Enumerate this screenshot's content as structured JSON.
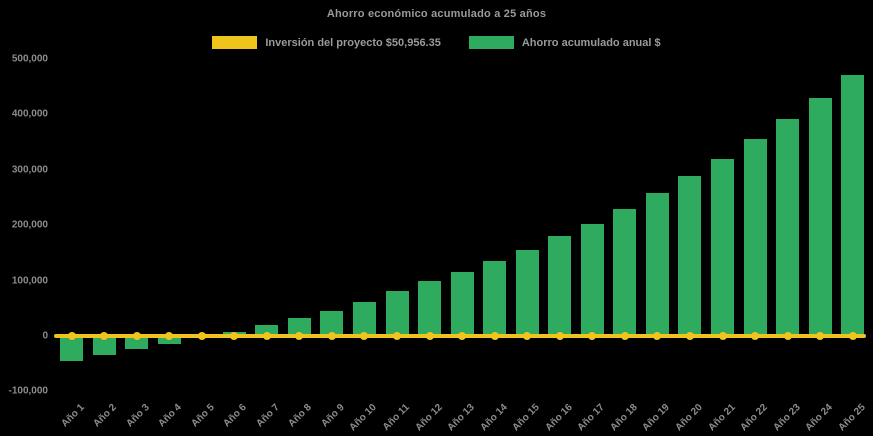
{
  "title": "Ahorro económico acumulado a 25 años",
  "legend": [
    {
      "label": "Inversión del proyecto $50,956.35",
      "color": "#EFC41C",
      "series_type": "line"
    },
    {
      "label": "Ahorro acumulado anual $",
      "color": "#2EAB5F",
      "series_type": "bar"
    }
  ],
  "colors": {
    "background": "#000000",
    "bar_green": "#2EAB5F",
    "line_yellow": "#EFC41C",
    "text_gray": "#8c8c8c",
    "title_gray": "#9a9a9a"
  },
  "chart_data": {
    "type": "bar",
    "title": "Ahorro económico acumulado a 25 años",
    "xlabel": "",
    "ylabel": "",
    "grid": false,
    "legend_position": "top",
    "ylim": [
      -100000,
      500000
    ],
    "y_ticks": [
      {
        "value": 500000,
        "label": "500,000"
      },
      {
        "value": 400000,
        "label": "400,000"
      },
      {
        "value": 300000,
        "label": "300,000"
      },
      {
        "value": 200000,
        "label": "200,000"
      },
      {
        "value": 100000,
        "label": "100,000"
      },
      {
        "value": 0,
        "label": "0"
      },
      {
        "value": -100000,
        "label": "-100,000"
      }
    ],
    "categories": [
      "Año 1",
      "Año 2",
      "Año 3",
      "Año 4",
      "Año 5",
      "Año 6",
      "Año 7",
      "Año 8",
      "Año 9",
      "Año 10",
      "Año 11",
      "Año 12",
      "Año 13",
      "Año 14",
      "Año 15",
      "Año 16",
      "Año 17",
      "Año 18",
      "Año 19",
      "Año 20",
      "Año 21",
      "Año 22",
      "Año 23",
      "Año 24",
      "Año 25"
    ],
    "series": [
      {
        "name": "Ahorro acumulado anual $",
        "type": "bar",
        "color": "#2EAB5F",
        "values": [
          -45000,
          -35000,
          -24000,
          -14000,
          -2000,
          7000,
          20000,
          32000,
          46000,
          62000,
          81000,
          99000,
          115000,
          135000,
          156000,
          180000,
          203000,
          230000,
          259000,
          288000,
          320000,
          355000,
          392000,
          430000,
          472000
        ]
      },
      {
        "name": "Inversión del proyecto $50,956.35",
        "type": "line",
        "color": "#EFC41C",
        "marker": "circle",
        "constant_value": 0
      }
    ]
  }
}
